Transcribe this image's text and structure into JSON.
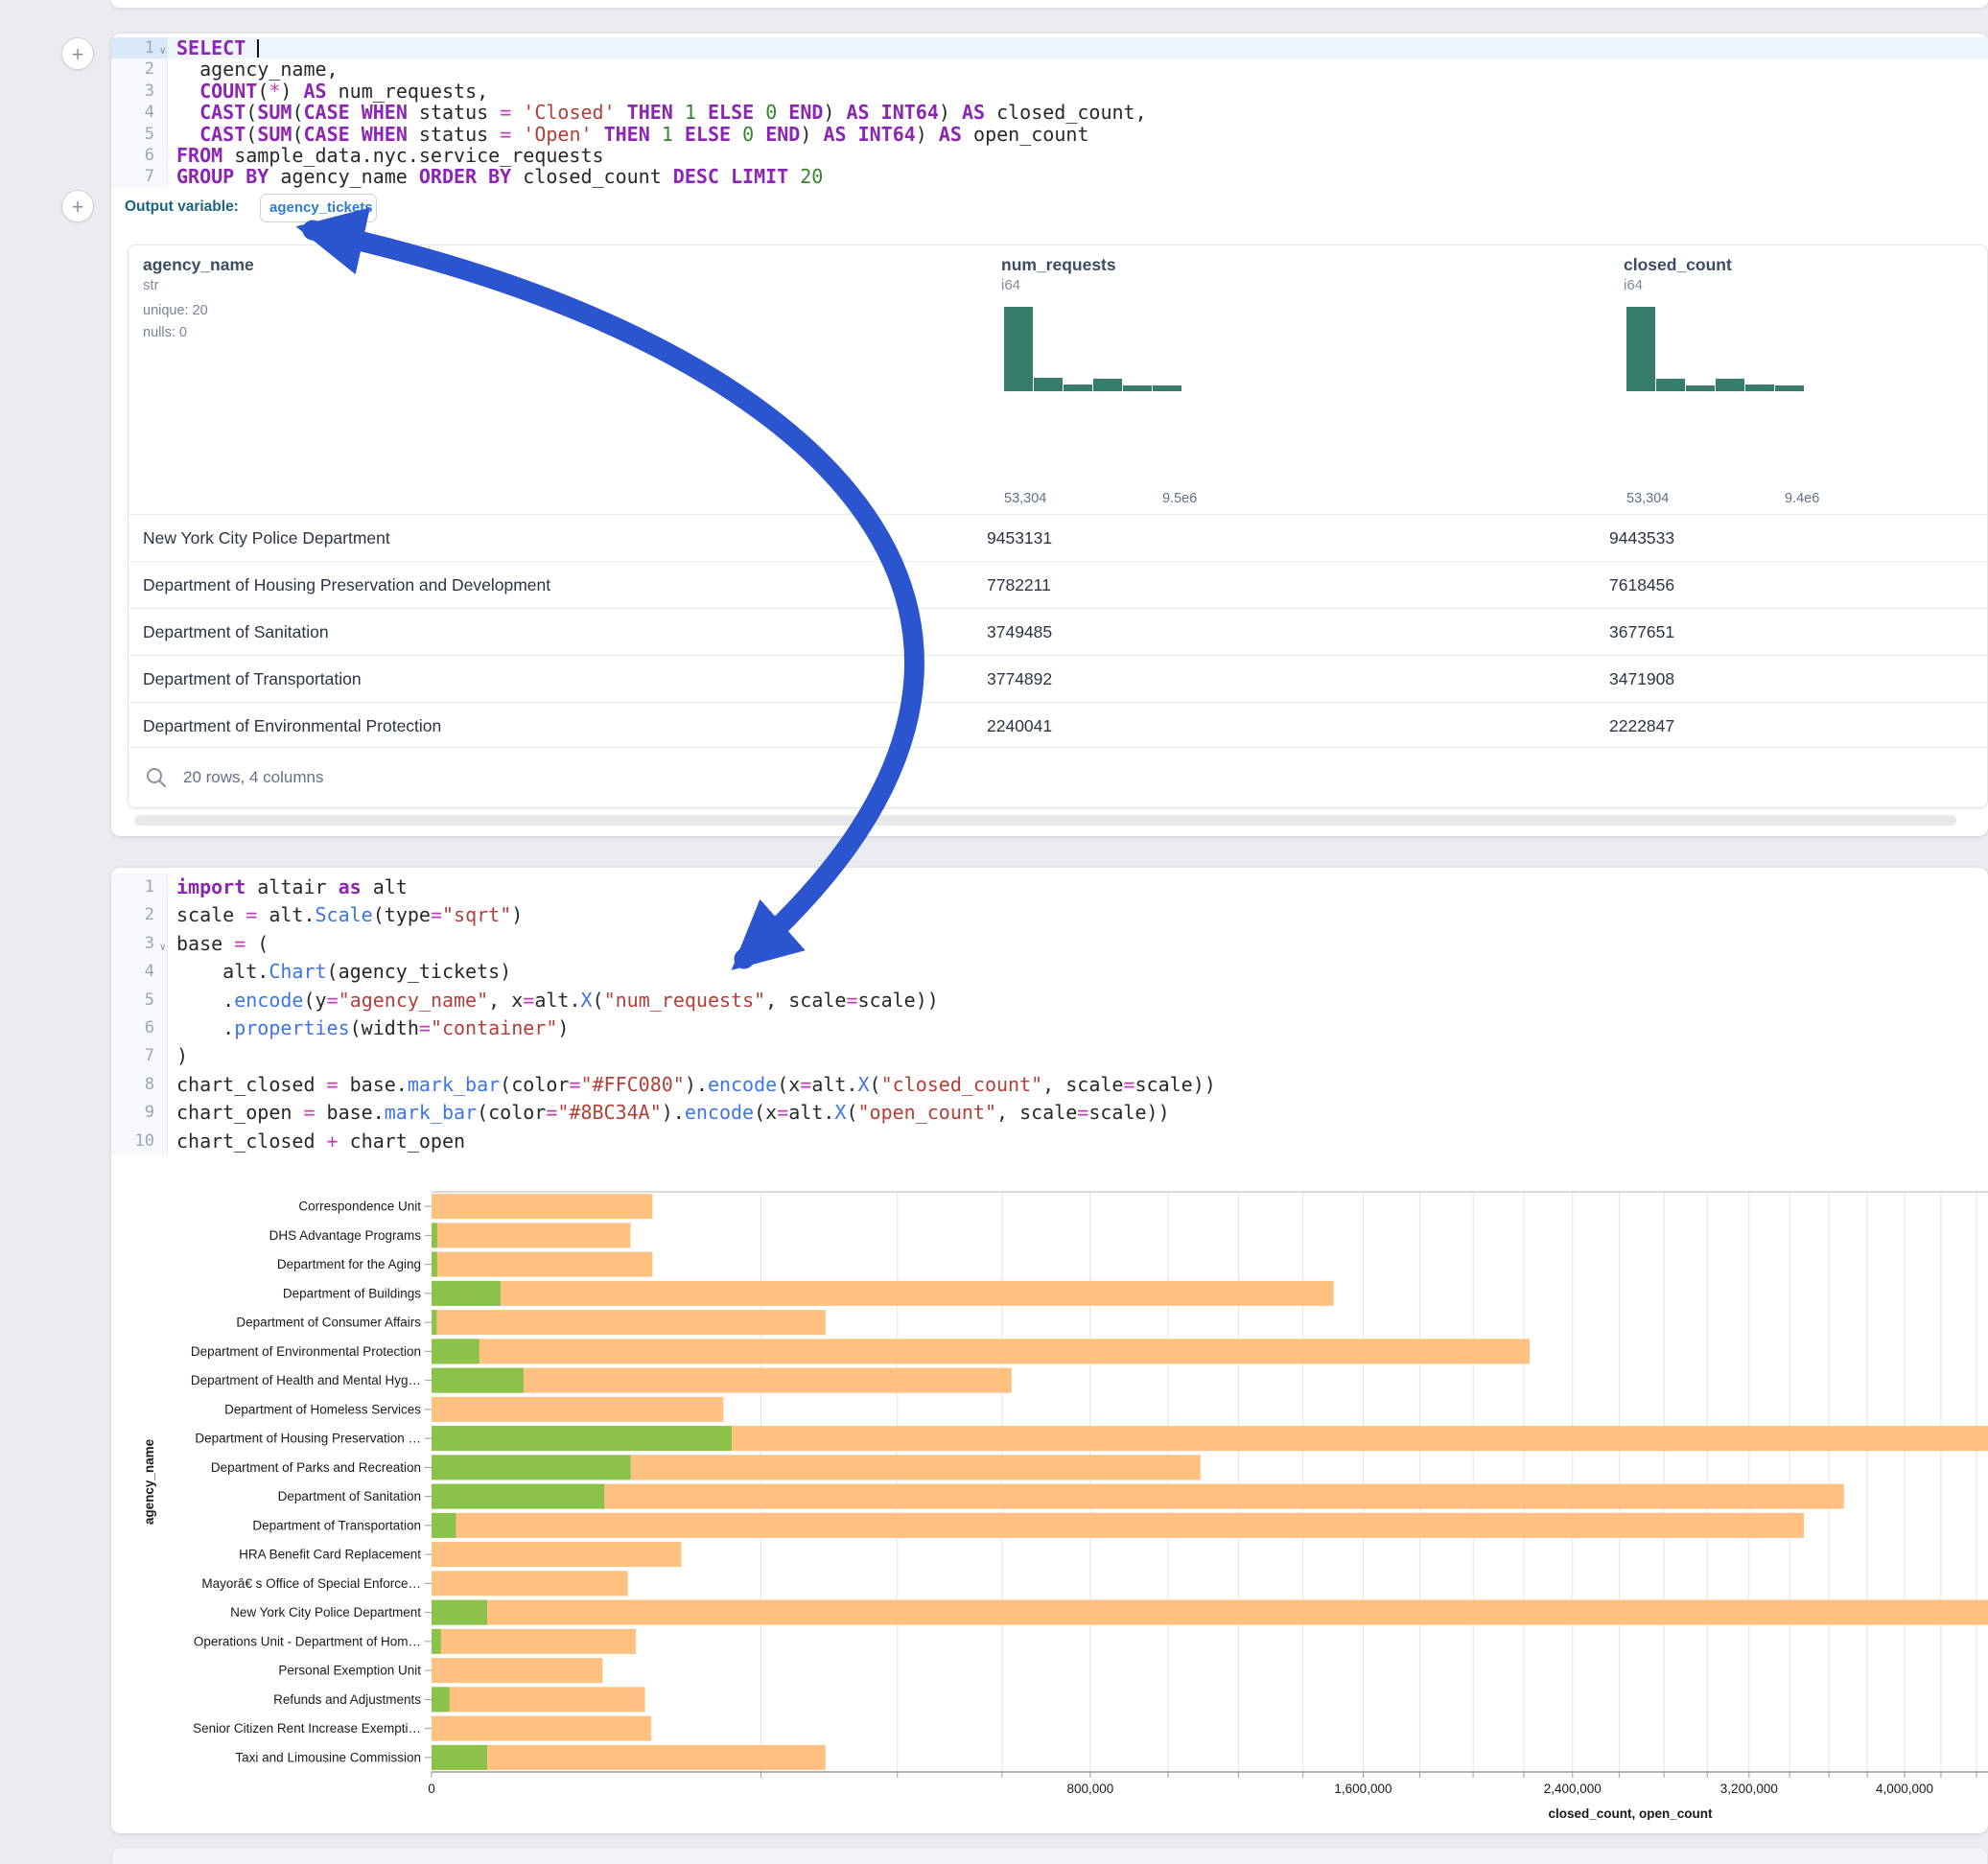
{
  "colors": {
    "arrow": "#2b55cf",
    "bar_closed": "#FFC080",
    "bar_open": "#8BC34A",
    "hist": "#377d6c"
  },
  "sql_cell": {
    "cursor_line": 1,
    "fold_lines": [
      1
    ],
    "lines": [
      [
        [
          "SELECT",
          "kw"
        ],
        [
          " ",
          "pl"
        ]
      ],
      [
        [
          "  agency_name,",
          "pl"
        ]
      ],
      [
        [
          "  ",
          "pl"
        ],
        [
          "COUNT",
          "kw"
        ],
        [
          "(",
          "pl"
        ],
        [
          "*",
          "op"
        ],
        [
          ") ",
          "pl"
        ],
        [
          "AS",
          "kw"
        ],
        [
          " num_requests,",
          "pl"
        ]
      ],
      [
        [
          "  ",
          "pl"
        ],
        [
          "CAST",
          "kw"
        ],
        [
          "(",
          "pl"
        ],
        [
          "SUM",
          "kw"
        ],
        [
          "(",
          "pl"
        ],
        [
          "CASE",
          "kw"
        ],
        [
          " ",
          "pl"
        ],
        [
          "WHEN",
          "kw"
        ],
        [
          " status ",
          "pl"
        ],
        [
          "=",
          "op"
        ],
        [
          " ",
          "pl"
        ],
        [
          "'Closed'",
          "str"
        ],
        [
          " ",
          "pl"
        ],
        [
          "THEN",
          "kw"
        ],
        [
          " ",
          "pl"
        ],
        [
          "1",
          "num"
        ],
        [
          " ",
          "pl"
        ],
        [
          "ELSE",
          "kw"
        ],
        [
          " ",
          "pl"
        ],
        [
          "0",
          "num"
        ],
        [
          " ",
          "pl"
        ],
        [
          "END",
          "kw"
        ],
        [
          ") ",
          "pl"
        ],
        [
          "AS",
          "kw"
        ],
        [
          " ",
          "pl"
        ],
        [
          "INT64",
          "kw"
        ],
        [
          ") ",
          "pl"
        ],
        [
          "AS",
          "kw"
        ],
        [
          " closed_count,",
          "pl"
        ]
      ],
      [
        [
          "  ",
          "pl"
        ],
        [
          "CAST",
          "kw"
        ],
        [
          "(",
          "pl"
        ],
        [
          "SUM",
          "kw"
        ],
        [
          "(",
          "pl"
        ],
        [
          "CASE",
          "kw"
        ],
        [
          " ",
          "pl"
        ],
        [
          "WHEN",
          "kw"
        ],
        [
          " status ",
          "pl"
        ],
        [
          "=",
          "op"
        ],
        [
          " ",
          "pl"
        ],
        [
          "'Open'",
          "str"
        ],
        [
          " ",
          "pl"
        ],
        [
          "THEN",
          "kw"
        ],
        [
          " ",
          "pl"
        ],
        [
          "1",
          "num"
        ],
        [
          " ",
          "pl"
        ],
        [
          "ELSE",
          "kw"
        ],
        [
          " ",
          "pl"
        ],
        [
          "0",
          "num"
        ],
        [
          " ",
          "pl"
        ],
        [
          "END",
          "kw"
        ],
        [
          ") ",
          "pl"
        ],
        [
          "AS",
          "kw"
        ],
        [
          " ",
          "pl"
        ],
        [
          "INT64",
          "kw"
        ],
        [
          ") ",
          "pl"
        ],
        [
          "AS",
          "kw"
        ],
        [
          " open_count",
          "pl"
        ]
      ],
      [
        [
          "FROM",
          "kw"
        ],
        [
          " sample_data.nyc.service_requests",
          "pl"
        ]
      ],
      [
        [
          "GROUP BY",
          "kw"
        ],
        [
          " agency_name ",
          "pl"
        ],
        [
          "ORDER BY",
          "kw"
        ],
        [
          " closed_count ",
          "pl"
        ],
        [
          "DESC",
          "kw"
        ],
        [
          " ",
          "pl"
        ],
        [
          "LIMIT",
          "kw"
        ],
        [
          " ",
          "pl"
        ],
        [
          "20",
          "num"
        ]
      ]
    ],
    "output_variable_label": "Output variable:",
    "output_variable_value": "agency_tickets"
  },
  "table": {
    "columns": [
      {
        "name": "agency_name",
        "type": "str",
        "meta": [
          "unique: 20",
          "nulls: 0"
        ]
      },
      {
        "name": "num_requests",
        "type": "i64",
        "hist": [
          1,
          0.16,
          0.08,
          0.15,
          0.07,
          0.07
        ],
        "min_label": "53,304",
        "max_label": "9.5e6"
      },
      {
        "name": "closed_count",
        "type": "i64",
        "hist": [
          1,
          0.15,
          0.07,
          0.15,
          0.08,
          0.07
        ],
        "min_label": "53,304",
        "max_label": "9.4e6"
      }
    ],
    "rows": [
      [
        "New York City Police Department",
        "9453131",
        "9443533"
      ],
      [
        "Department of Housing Preservation and Development",
        "7782211",
        "7618456"
      ],
      [
        "Department of Sanitation",
        "3749485",
        "3677651"
      ],
      [
        "Department of Transportation",
        "3774892",
        "3471908"
      ],
      [
        "Department of Environmental Protection",
        "2240041",
        "2222847"
      ]
    ],
    "footer": "20 rows, 4 columns"
  },
  "python_cell": {
    "fold_lines": [
      3
    ],
    "lines": [
      [
        [
          "import",
          "kw"
        ],
        [
          " altair ",
          "pl"
        ],
        [
          "as",
          "kw"
        ],
        [
          " alt",
          "pl"
        ]
      ],
      [
        [
          "scale ",
          "pl"
        ],
        [
          "=",
          "op"
        ],
        [
          " alt.",
          "pl"
        ],
        [
          "Scale",
          "fn"
        ],
        [
          "(type",
          "pl"
        ],
        [
          "=",
          "op"
        ],
        [
          "\"sqrt\"",
          "str"
        ],
        [
          ")",
          "pl"
        ]
      ],
      [
        [
          "base ",
          "pl"
        ],
        [
          "=",
          "op"
        ],
        [
          " (",
          "pl"
        ]
      ],
      [
        [
          "    alt.",
          "pl"
        ],
        [
          "Chart",
          "fn"
        ],
        [
          "(agency_tickets)",
          "pl"
        ]
      ],
      [
        [
          "    .",
          "pl"
        ],
        [
          "encode",
          "fn"
        ],
        [
          "(y",
          "pl"
        ],
        [
          "=",
          "op"
        ],
        [
          "\"agency_name\"",
          "str"
        ],
        [
          ", x",
          "pl"
        ],
        [
          "=",
          "op"
        ],
        [
          "alt.",
          "pl"
        ],
        [
          "X",
          "fn"
        ],
        [
          "(",
          "pl"
        ],
        [
          "\"num_requests\"",
          "str"
        ],
        [
          ", scale",
          "pl"
        ],
        [
          "=",
          "op"
        ],
        [
          "scale))",
          "pl"
        ]
      ],
      [
        [
          "    .",
          "pl"
        ],
        [
          "properties",
          "fn"
        ],
        [
          "(width",
          "pl"
        ],
        [
          "=",
          "op"
        ],
        [
          "\"container\"",
          "str"
        ],
        [
          ")",
          "pl"
        ]
      ],
      [
        [
          ")",
          "pl"
        ]
      ],
      [
        [
          "chart_closed ",
          "pl"
        ],
        [
          "=",
          "op"
        ],
        [
          " base.",
          "pl"
        ],
        [
          "mark_bar",
          "fn"
        ],
        [
          "(color",
          "pl"
        ],
        [
          "=",
          "op"
        ],
        [
          "\"#FFC080\"",
          "str"
        ],
        [
          ").",
          "pl"
        ],
        [
          "encode",
          "fn"
        ],
        [
          "(x",
          "pl"
        ],
        [
          "=",
          "op"
        ],
        [
          "alt.",
          "pl"
        ],
        [
          "X",
          "fn"
        ],
        [
          "(",
          "pl"
        ],
        [
          "\"closed_count\"",
          "str"
        ],
        [
          ", scale",
          "pl"
        ],
        [
          "=",
          "op"
        ],
        [
          "scale))",
          "pl"
        ]
      ],
      [
        [
          "chart_open ",
          "pl"
        ],
        [
          "=",
          "op"
        ],
        [
          " base.",
          "pl"
        ],
        [
          "mark_bar",
          "fn"
        ],
        [
          "(color",
          "pl"
        ],
        [
          "=",
          "op"
        ],
        [
          "\"#8BC34A\"",
          "str"
        ],
        [
          ").",
          "pl"
        ],
        [
          "encode",
          "fn"
        ],
        [
          "(x",
          "pl"
        ],
        [
          "=",
          "op"
        ],
        [
          "alt.",
          "pl"
        ],
        [
          "X",
          "fn"
        ],
        [
          "(",
          "pl"
        ],
        [
          "\"open_count\"",
          "str"
        ],
        [
          ", scale",
          "pl"
        ],
        [
          "=",
          "op"
        ],
        [
          "scale))",
          "pl"
        ]
      ],
      [
        [
          "chart_closed ",
          "pl"
        ],
        [
          "+",
          "op"
        ],
        [
          " chart_open",
          "pl"
        ]
      ]
    ]
  },
  "chart_data": {
    "type": "bar",
    "orientation": "horizontal",
    "scale": "sqrt",
    "xlabel": "closed_count, open_count",
    "ylabel": "agency_name",
    "x_tick_values": [
      0,
      800000,
      1600000,
      2400000,
      3200000,
      4000000
    ],
    "x_tick_labels": [
      "0",
      "800,000",
      "1,600,000",
      "2,400,000",
      "3,200,000",
      "4,000,000"
    ],
    "minor_tick_step": 200000,
    "grid": true,
    "categories": [
      "Correspondence Unit",
      "DHS Advantage Programs",
      "Department for the Aging",
      "Department of Buildings",
      "Department of Consumer Affairs",
      "Department of Environmental Protection",
      "Department of Health and Mental Hyg…",
      "Department of Homeless Services",
      "Department of Housing Preservation …",
      "Department of Parks and Recreation",
      "Department of Sanitation",
      "Department of Transportation",
      "HRA Benefit Card Replacement",
      "Mayorâ€ s Office of Special Enforce…",
      "New York City Police Department",
      "Operations Unit - Department of Hom…",
      "Personal Exemption Unit",
      "Refunds and Adjustments",
      "Senior Citizen Rent Increase Exempti…",
      "Taxi and Limousine Commission"
    ],
    "series": [
      {
        "name": "closed_count",
        "color": "#FFC080",
        "values": [
          90000,
          73000,
          90000,
          1500000,
          286000,
          2222847,
          620000,
          157000,
          7618456,
          1090000,
          3677651,
          3471908,
          115000,
          71000,
          9443533,
          77000,
          54000,
          84000,
          89000,
          286000
        ]
      },
      {
        "name": "open_count",
        "color": "#8BC34A",
        "values": [
          0,
          60,
          60,
          8800,
          50,
          4200,
          15600,
          0,
          166000,
          73000,
          55000,
          1100,
          0,
          0,
          5700,
          160,
          0,
          600,
          0,
          5700
        ]
      }
    ]
  }
}
